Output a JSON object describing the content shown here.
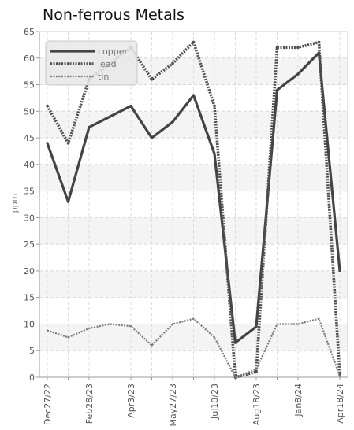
{
  "chart_data": {
    "type": "line",
    "title": "Non-ferrous Metals",
    "ylabel": "ppm",
    "xlabel": "",
    "ylim": [
      0,
      65
    ],
    "yticks": [
      0,
      5,
      10,
      15,
      20,
      25,
      30,
      35,
      40,
      45,
      50,
      55,
      60,
      65
    ],
    "x_tick_labels": [
      "Dec27/22",
      "Feb28/23",
      "Apr3/23",
      "May27/23",
      "Jul10/23",
      "Aug18/23",
      "Jan8/24",
      "Apr18/24"
    ],
    "grid": true,
    "legend_position": "top-left",
    "series": [
      {
        "name": "copper",
        "color": "#444444",
        "style": "solid",
        "values": [
          44,
          33,
          47,
          49,
          51,
          45,
          48,
          53,
          42,
          6.5,
          9.5,
          54,
          57,
          61,
          20
        ]
      },
      {
        "name": "lead",
        "color": "#505050",
        "style": "dotted",
        "values": [
          51,
          44,
          56,
          59,
          62,
          56,
          59,
          63,
          51,
          0,
          1,
          62,
          62,
          63,
          0.5
        ]
      },
      {
        "name": "tin",
        "color": "#7a7a7a",
        "style": "dotted-thin",
        "values": [
          8.8,
          7.5,
          9.2,
          10,
          9.6,
          6,
          10,
          11,
          7.5,
          0,
          1.5,
          10,
          10,
          11,
          0.2
        ]
      }
    ]
  }
}
